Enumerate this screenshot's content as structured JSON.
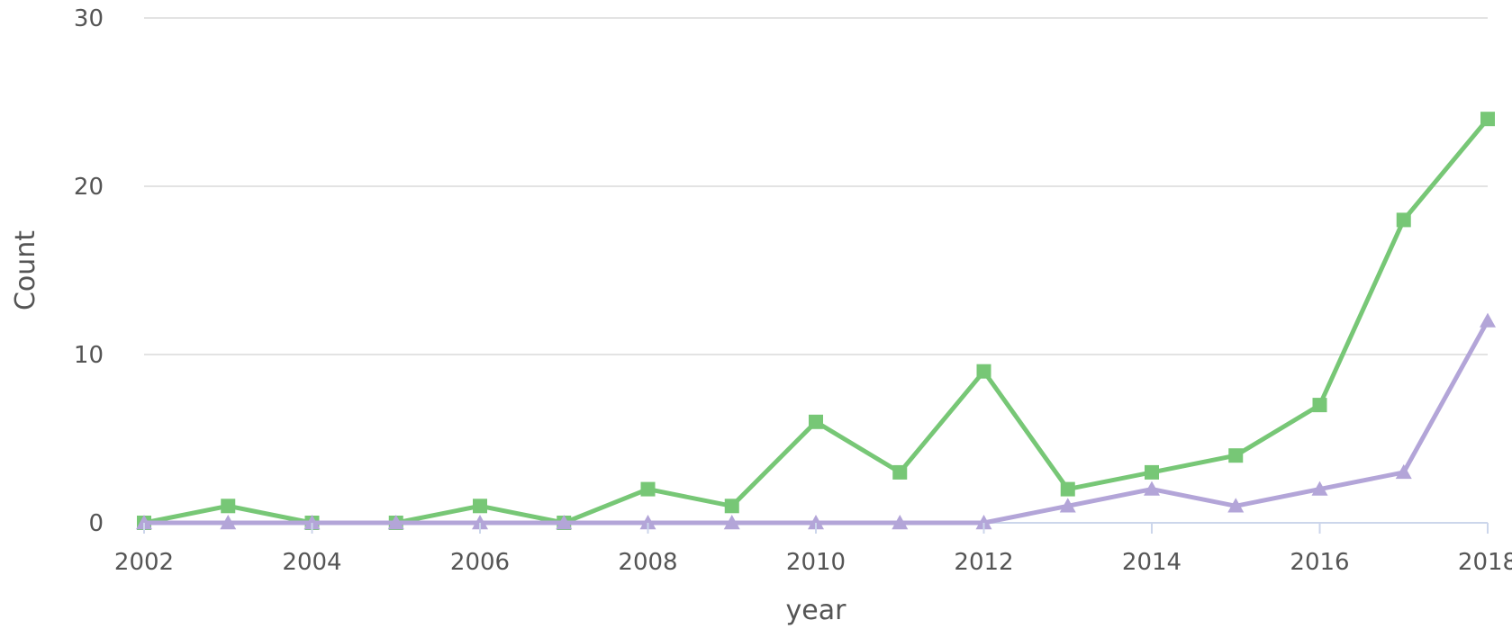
{
  "chart_data": {
    "type": "line",
    "title": "",
    "xlabel": "year",
    "ylabel": "Count",
    "x": [
      2002,
      2003,
      2004,
      2005,
      2006,
      2007,
      2008,
      2009,
      2010,
      2011,
      2012,
      2013,
      2014,
      2015,
      2016,
      2017,
      2018
    ],
    "x_ticks": [
      "2002",
      "2004",
      "2006",
      "2008",
      "2010",
      "2012",
      "2014",
      "2016",
      "2018"
    ],
    "y_ticks": [
      "0",
      "10",
      "20",
      "30"
    ],
    "xlim": [
      2002,
      2018
    ],
    "ylim": [
      0,
      30
    ],
    "grid": true,
    "legend": false,
    "series": [
      {
        "color": "#77c776",
        "marker": "square",
        "values": [
          0,
          1,
          0,
          0,
          1,
          0,
          2,
          1,
          6,
          3,
          9,
          2,
          3,
          4,
          7,
          18,
          24
        ]
      },
      {
        "color": "#b3a5d8",
        "marker": "triangle",
        "values": [
          0,
          0,
          0,
          0,
          0,
          0,
          0,
          0,
          0,
          0,
          0,
          1,
          2,
          1,
          2,
          3,
          12
        ]
      }
    ]
  }
}
